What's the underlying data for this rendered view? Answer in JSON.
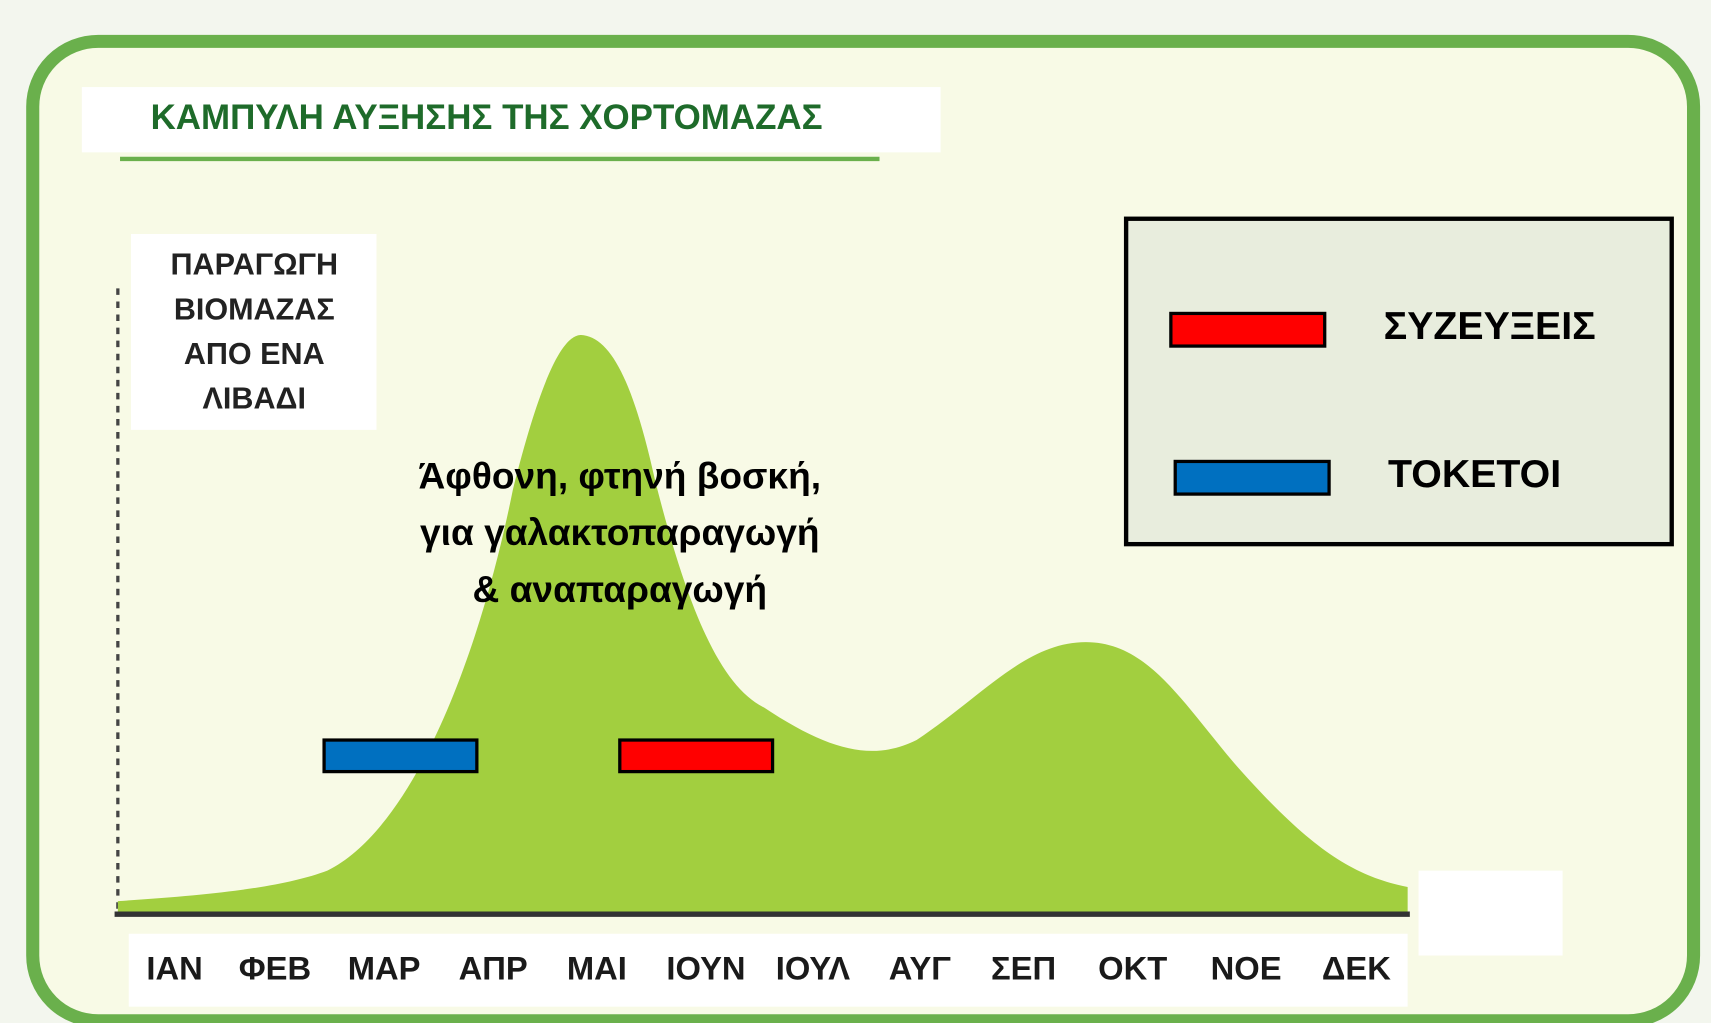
{
  "title": "ΚΑΜΠΥΛΗ ΑΥΞΗΣΗΣ ΤΗΣ ΧΟΡΤΟΜΑΖΑΣ",
  "y_label": [
    "ΠΑΡΑΓΩΓΗ",
    "ΒΙΟΜΑΖΑΣ",
    "ΑΠΟ ΕΝΑ",
    "ΛΙΒΑΔΙ"
  ],
  "annotation": [
    "Άφθονη, φτηνή βοσκή,",
    "για γαλακτοπαραγωγή",
    "& αναπαραγωγή"
  ],
  "months": [
    "ΙΑΝ",
    "ΦΕΒ",
    "ΜΑΡ",
    "ΑΠΡ",
    "ΜΑΙ",
    "ΙΟΥΝ",
    "ΙΟΥΛ",
    "ΑΥΓ",
    "ΣΕΠ",
    "ΟΚΤ",
    "ΝΟΕ",
    "ΔΕΚ"
  ],
  "legend": [
    {
      "label": "ΣΥΖΕΥΞΕΙΣ",
      "color": "#ff0000"
    },
    {
      "label": "ΤΟΚΕΤΟΙ",
      "color": "#0070c0"
    }
  ]
}
